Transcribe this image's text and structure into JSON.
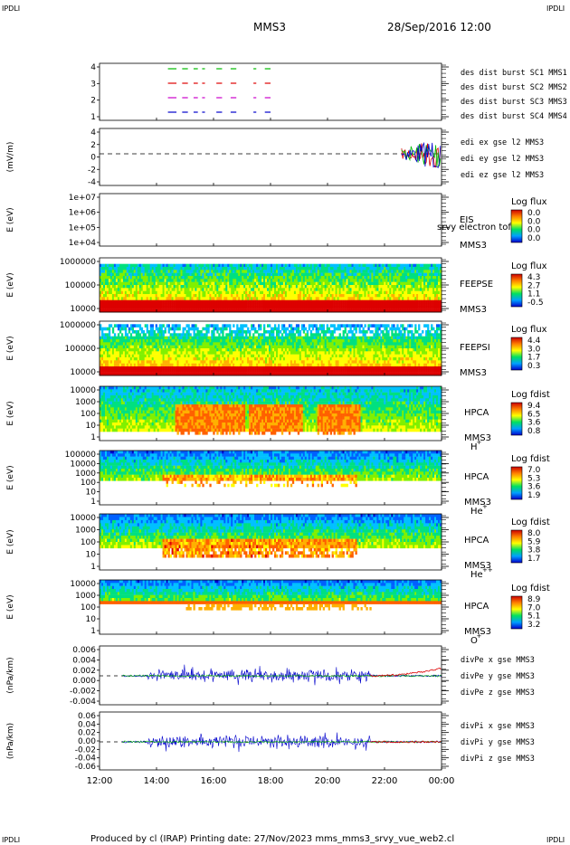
{
  "corner_labels": {
    "tl": "IPDLI",
    "tr": "IPDLI",
    "bl": "IPDLI",
    "br": "IPDLI"
  },
  "header": {
    "spacecraft": "MMS3",
    "date": "28/Sep/2016 12:00"
  },
  "footer": {
    "text": "Produced by cl (IRAP)   Printing date: 27/Nov/2023   mms_mms3_srvy_vue_web2.cl"
  },
  "colors": {
    "blue": "#0000cc",
    "red": "#dd0000",
    "green": "#00bb00",
    "magenta": "#cc00cc"
  },
  "chart_data": {
    "type": "multi-panel time series / spectrograms",
    "xaxis": {
      "ticks": [
        "12:00",
        "14:00",
        "16:00",
        "18:00",
        "20:00",
        "22:00",
        "00:00"
      ],
      "range_hours": [
        12,
        24
      ]
    },
    "panels": [
      {
        "id": "burst",
        "yticks": [
          "4",
          "3",
          "2",
          "1"
        ],
        "ylabel": "",
        "legend": [
          {
            "text": "des dist burst SC1 MMS1",
            "color": "#0000cc"
          },
          {
            "text": "des dist burst SC2 MMS2",
            "color": "#cc00cc"
          },
          {
            "text": "des dist burst SC3 MMS3",
            "color": "#dd0000"
          },
          {
            "text": "des dist burst SC4 MMS4",
            "color": "#00bb00"
          }
        ],
        "segments_hours": [
          [
            14.4,
            14.7
          ],
          [
            14.9,
            15.1
          ],
          [
            15.3,
            15.45
          ],
          [
            15.6,
            15.7
          ],
          [
            16.1,
            16.3
          ],
          [
            16.6,
            16.8
          ],
          [
            17.4,
            17.5
          ],
          [
            17.8,
            18.0
          ]
        ]
      },
      {
        "id": "efield",
        "yticks": [
          "4",
          "2",
          "0",
          "-2",
          "-4"
        ],
        "ylabel": "(mV/m)",
        "legend": [
          {
            "text": "edi ex gse l2 MMS3",
            "color": "#dd0000"
          },
          {
            "text": "edi ey gse l2 MMS3",
            "color": "#00bb00"
          },
          {
            "text": "edi ez gse l2 MMS3",
            "color": "#0000cc"
          }
        ]
      },
      {
        "id": "eis",
        "yticks": [
          "1e+07",
          "1e+06",
          "1e+05",
          "1e+04"
        ],
        "ylabel": "E (eV)",
        "label_lines": [
          "EIS",
          "MMS3"
        ],
        "overlay": "srvy electron tof",
        "cb_title": "Log flux",
        "cb_values": [
          "0.0",
          "0.0",
          "0.0",
          "0.0"
        ]
      },
      {
        "id": "feepse",
        "yticks": [
          "1000000",
          "100000",
          "10000"
        ],
        "ylabel": "E (eV)",
        "label_lines": [
          "FEEPSE",
          "MMS3"
        ],
        "cb_title": "Log flux",
        "cb_values": [
          "4.3",
          "2.7",
          "1.1",
          "-0.5"
        ]
      },
      {
        "id": "feepsi",
        "yticks": [
          "1000000",
          "100000",
          "10000"
        ],
        "ylabel": "E (eV)",
        "label_lines": [
          "FEEPSI",
          "MMS3"
        ],
        "cb_title": "Log flux",
        "cb_values": [
          "4.4",
          "3.0",
          "1.7",
          "0.3"
        ]
      },
      {
        "id": "hpca_h",
        "yticks": [
          "10000",
          "1000",
          "100",
          "10",
          "1"
        ],
        "ylabel": "E (eV)",
        "label_lines": [
          "HPCA",
          "MMS3"
        ],
        "species": "H",
        "species_sup": "+",
        "cb_title": "Log fdist",
        "cb_values": [
          "9.4",
          "6.5",
          "3.6",
          "0.8"
        ]
      },
      {
        "id": "hpca_he",
        "yticks": [
          "100000",
          "10000",
          "1000",
          "100",
          "10",
          "1"
        ],
        "ylabel": "E (eV)",
        "label_lines": [
          "HPCA",
          "MMS3"
        ],
        "species": "He",
        "species_sup": "+",
        "cb_title": "Log fdist",
        "cb_values": [
          "7.0",
          "5.3",
          "3.6",
          "1.9"
        ]
      },
      {
        "id": "hpca_hepp",
        "yticks": [
          "10000",
          "1000",
          "100",
          "10",
          "1"
        ],
        "ylabel": "E (eV)",
        "label_lines": [
          "HPCA",
          "MMS3"
        ],
        "species": "He",
        "species_sup": "++",
        "cb_title": "Log fdist",
        "cb_values": [
          "8.0",
          "5.9",
          "3.8",
          "1.7"
        ]
      },
      {
        "id": "hpca_o",
        "yticks": [
          "10000",
          "1000",
          "100",
          "10",
          "1"
        ],
        "ylabel": "E (eV)",
        "label_lines": [
          "HPCA",
          "MMS3"
        ],
        "species": "O",
        "species_sup": "+",
        "cb_title": "Log fdist",
        "cb_values": [
          "8.9",
          "7.0",
          "5.1",
          "3.2"
        ]
      },
      {
        "id": "divpe",
        "yticks": [
          "0.006",
          "0.004",
          "0.002",
          "0.000",
          "-0.002",
          "-0.004"
        ],
        "ylabel": "(nPa/km)",
        "legend": [
          {
            "text": "divPe x gse MMS3",
            "color": "#dd0000"
          },
          {
            "text": "divPe y gse MMS3",
            "color": "#00bb00"
          },
          {
            "text": "divPe z gse MMS3",
            "color": "#0000cc"
          }
        ]
      },
      {
        "id": "divpi",
        "yticks": [
          "0.06",
          "0.04",
          "0.02",
          "0.00",
          "-0.02",
          "-0.04",
          "-0.06"
        ],
        "ylabel": "(nPa/km)",
        "legend": [
          {
            "text": "divPi x gse MMS3",
            "color": "#dd0000"
          },
          {
            "text": "divPi y gse MMS3",
            "color": "#00bb00"
          },
          {
            "text": "divPi z gse MMS3",
            "color": "#0000cc"
          }
        ]
      }
    ]
  }
}
